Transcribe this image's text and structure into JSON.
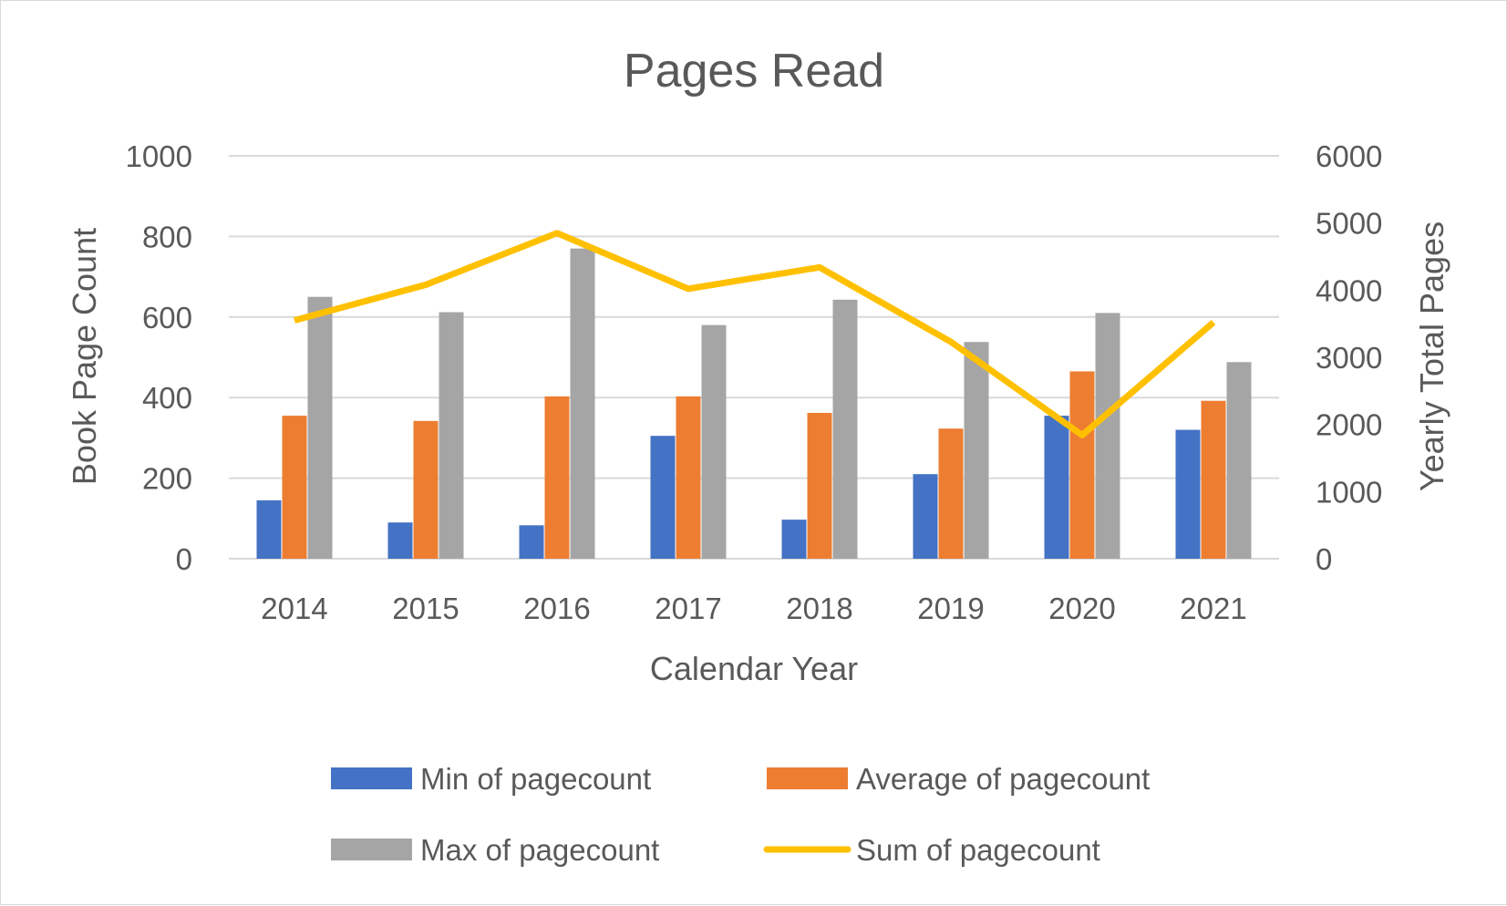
{
  "chart_data": {
    "type": "bar",
    "title": "Pages Read",
    "xlabel": "Calendar Year",
    "ylabel": "Book Page Count",
    "y2label": "Yearly Total Pages",
    "categories": [
      "2014",
      "2015",
      "2016",
      "2017",
      "2018",
      "2019",
      "2020",
      "2021"
    ],
    "ylim": [
      0,
      1000
    ],
    "yticks": [
      0,
      200,
      400,
      600,
      800,
      1000
    ],
    "y2lim": [
      0,
      6000
    ],
    "y2ticks": [
      0,
      1000,
      2000,
      3000,
      4000,
      5000,
      6000
    ],
    "grid": true,
    "legend_position": "bottom",
    "series": [
      {
        "name": "Min of pagecount",
        "type": "bar",
        "axis": "left",
        "color": "#4472c4",
        "values": [
          145,
          90,
          83,
          305,
          97,
          210,
          355,
          320
        ]
      },
      {
        "name": "Average of pagecount",
        "type": "bar",
        "axis": "left",
        "color": "#ed7d31",
        "values": [
          355,
          342,
          403,
          403,
          362,
          323,
          465,
          392
        ]
      },
      {
        "name": "Max of pagecount",
        "type": "bar",
        "axis": "left",
        "color": "#a5a5a5",
        "values": [
          650,
          612,
          770,
          580,
          643,
          538,
          610,
          488
        ]
      },
      {
        "name": "Sum of pagecount",
        "type": "line",
        "axis": "right",
        "color": "#ffc000",
        "values": [
          3550,
          4080,
          4850,
          4020,
          4340,
          3230,
          1840,
          3520
        ]
      }
    ]
  }
}
